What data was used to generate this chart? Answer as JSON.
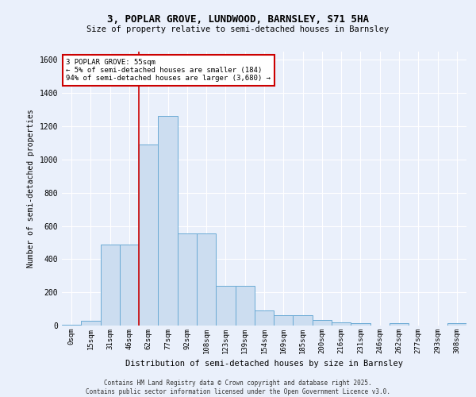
{
  "title_line1": "3, POPLAR GROVE, LUNDWOOD, BARNSLEY, S71 5HA",
  "title_line2": "Size of property relative to semi-detached houses in Barnsley",
  "xlabel": "Distribution of semi-detached houses by size in Barnsley",
  "ylabel": "Number of semi-detached properties",
  "categories": [
    "0sqm",
    "15sqm",
    "31sqm",
    "46sqm",
    "62sqm",
    "77sqm",
    "92sqm",
    "108sqm",
    "123sqm",
    "139sqm",
    "154sqm",
    "169sqm",
    "185sqm",
    "200sqm",
    "216sqm",
    "231sqm",
    "246sqm",
    "262sqm",
    "277sqm",
    "293sqm",
    "308sqm"
  ],
  "values": [
    5,
    30,
    490,
    490,
    1090,
    1265,
    555,
    555,
    240,
    240,
    90,
    60,
    60,
    35,
    20,
    15,
    0,
    15,
    0,
    0,
    15
  ],
  "bar_color": "#ccddf0",
  "bar_edge_color": "#6aaad4",
  "background_color": "#eaf0fb",
  "grid_color": "#ffffff",
  "annotation_text": "3 POPLAR GROVE: 55sqm\n← 5% of semi-detached houses are smaller (184)\n94% of semi-detached houses are larger (3,680) →",
  "annotation_box_color": "#ffffff",
  "annotation_box_edge": "#cc0000",
  "vline_color": "#cc0000",
  "vline_x": 3.5,
  "footer_line1": "Contains HM Land Registry data © Crown copyright and database right 2025.",
  "footer_line2": "Contains public sector information licensed under the Open Government Licence v3.0.",
  "ylim": [
    0,
    1650
  ],
  "yticks": [
    0,
    200,
    400,
    600,
    800,
    1000,
    1200,
    1400,
    1600
  ]
}
